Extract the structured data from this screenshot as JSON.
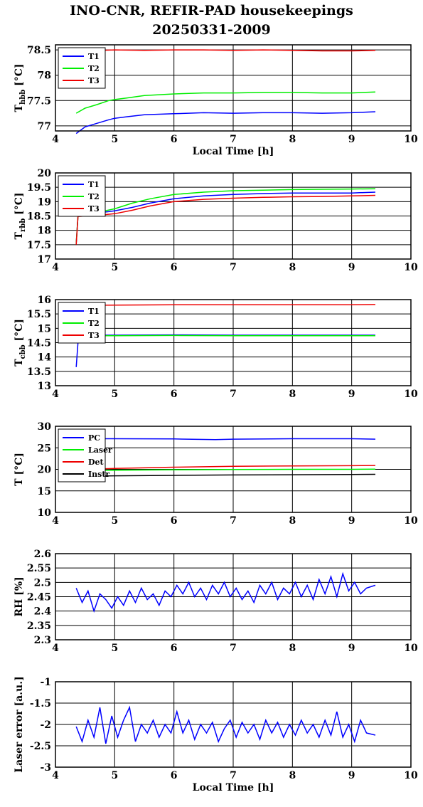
{
  "title_line1": "INO-CNR, REFIR-PAD housekeepings",
  "title_line2": "20250331-2009",
  "colors": {
    "blue": "#0000ff",
    "green": "#00ee00",
    "red": "#ee0000",
    "black": "#000000"
  },
  "chart_data": [
    {
      "type": "line",
      "ylabel": "T",
      "ylabel_sub": "hbb",
      "ylabel_unit": " [°C]",
      "xlabel": "Local Time [h]",
      "xlim": [
        4,
        10
      ],
      "ylim": [
        76.9,
        78.6
      ],
      "xticks": [
        "4",
        "5",
        "6",
        "7",
        "8",
        "9",
        "10"
      ],
      "yticks": [
        "78.5",
        "78",
        "77.5",
        "77"
      ],
      "ytick_values": [
        78.5,
        78,
        77.5,
        77
      ],
      "legend": "top-left",
      "series": [
        {
          "name": "T1",
          "color": "blue",
          "x": [
            4.35,
            4.5,
            4.7,
            4.9,
            5.0,
            5.2,
            5.5,
            6.0,
            6.5,
            7.0,
            7.5,
            8.0,
            8.5,
            9.0,
            9.4
          ],
          "y": [
            76.85,
            76.98,
            77.05,
            77.12,
            77.15,
            77.18,
            77.22,
            77.24,
            77.26,
            77.25,
            77.26,
            77.26,
            77.25,
            77.26,
            77.28
          ]
        },
        {
          "name": "T2",
          "color": "green",
          "x": [
            4.35,
            4.5,
            4.7,
            4.9,
            5.0,
            5.2,
            5.5,
            6.0,
            6.5,
            7.0,
            7.5,
            8.0,
            8.5,
            9.0,
            9.4
          ],
          "y": [
            77.25,
            77.35,
            77.42,
            77.5,
            77.52,
            77.55,
            77.6,
            77.63,
            77.65,
            77.65,
            77.66,
            77.66,
            77.65,
            77.65,
            77.67
          ]
        },
        {
          "name": "T3",
          "color": "red",
          "x": [
            4.35,
            4.5,
            5.0,
            5.5,
            6.0,
            6.5,
            7.0,
            7.5,
            8.0,
            8.5,
            9.0,
            9.4
          ],
          "y": [
            78.5,
            78.48,
            78.5,
            78.49,
            78.5,
            78.5,
            78.49,
            78.5,
            78.49,
            78.48,
            78.48,
            78.49
          ]
        }
      ]
    },
    {
      "type": "line",
      "ylabel": "T",
      "ylabel_sub": "rbb",
      "ylabel_unit": " [°C]",
      "xlabel": "",
      "xlim": [
        4,
        10
      ],
      "ylim": [
        17,
        20
      ],
      "xticks": [
        "4",
        "5",
        "6",
        "7",
        "8",
        "9",
        "10"
      ],
      "yticks": [
        "20",
        "19.5",
        "19",
        "18.5",
        "18",
        "17.5",
        "17"
      ],
      "ytick_values": [
        20,
        19.5,
        19,
        18.5,
        18,
        17.5,
        17
      ],
      "legend": "top-left",
      "series": [
        {
          "name": "T1",
          "color": "blue",
          "x": [
            4.35,
            4.38,
            4.5,
            4.7,
            5.0,
            5.3,
            5.6,
            6.0,
            6.5,
            7.0,
            7.5,
            8.0,
            8.5,
            9.0,
            9.4
          ],
          "y": [
            17.55,
            18.5,
            18.55,
            18.6,
            18.68,
            18.8,
            18.95,
            19.1,
            19.2,
            19.25,
            19.28,
            19.3,
            19.3,
            19.3,
            19.33
          ]
        },
        {
          "name": "T2",
          "color": "green",
          "x": [
            4.35,
            4.38,
            4.5,
            4.7,
            5.0,
            5.3,
            5.6,
            6.0,
            6.5,
            7.0,
            7.5,
            8.0,
            8.5,
            9.0,
            9.4
          ],
          "y": [
            17.55,
            18.5,
            18.55,
            18.62,
            18.75,
            18.95,
            19.1,
            19.25,
            19.33,
            19.38,
            19.4,
            19.42,
            19.43,
            19.44,
            19.45
          ]
        },
        {
          "name": "T3",
          "color": "red",
          "x": [
            4.35,
            4.38,
            4.5,
            4.7,
            5.0,
            5.3,
            5.6,
            6.0,
            6.5,
            7.0,
            7.5,
            8.0,
            8.5,
            9.0,
            9.4
          ],
          "y": [
            17.5,
            18.48,
            18.5,
            18.52,
            18.58,
            18.7,
            18.85,
            19.0,
            19.08,
            19.12,
            19.15,
            19.17,
            19.18,
            19.2,
            19.22
          ]
        }
      ]
    },
    {
      "type": "line",
      "ylabel": "T",
      "ylabel_sub": "cbb",
      "ylabel_unit": " [°C]",
      "xlabel": "",
      "xlim": [
        4,
        10
      ],
      "ylim": [
        13,
        16
      ],
      "xticks": [
        "4",
        "5",
        "6",
        "7",
        "8",
        "9",
        "10"
      ],
      "yticks": [
        "16",
        "15.5",
        "15",
        "14.5",
        "14",
        "13.5",
        "13"
      ],
      "ytick_values": [
        16,
        15.5,
        15,
        14.5,
        14,
        13.5,
        13
      ],
      "legend": "top-left",
      "series": [
        {
          "name": "T1",
          "color": "blue",
          "x": [
            4.35,
            4.38,
            4.4,
            4.5,
            5.0,
            6.0,
            7.0,
            8.0,
            9.0,
            9.4
          ],
          "y": [
            13.65,
            14.5,
            14.75,
            14.76,
            14.76,
            14.77,
            14.76,
            14.76,
            14.76,
            14.76
          ]
        },
        {
          "name": "T2",
          "color": "green",
          "x": [
            4.5,
            5.0,
            6.0,
            7.0,
            8.0,
            9.0,
            9.4
          ],
          "y": [
            14.74,
            14.74,
            14.75,
            14.74,
            14.74,
            14.74,
            14.74
          ]
        },
        {
          "name": "T3",
          "color": "red",
          "x": [
            4.5,
            5.0,
            6.0,
            7.0,
            8.0,
            9.0,
            9.4
          ],
          "y": [
            15.8,
            15.81,
            15.82,
            15.82,
            15.82,
            15.82,
            15.83
          ]
        }
      ]
    },
    {
      "type": "line",
      "ylabel": "T [°C]",
      "ylabel_sub": "",
      "ylabel_unit": "",
      "xlabel": "",
      "xlim": [
        4,
        10
      ],
      "ylim": [
        10,
        30
      ],
      "xticks": [
        "4",
        "5",
        "6",
        "7",
        "8",
        "9",
        "10"
      ],
      "yticks": [
        "30",
        "25",
        "20",
        "15",
        "10"
      ],
      "ytick_values": [
        30,
        25,
        20,
        15,
        10
      ],
      "legend": "top-left",
      "series": [
        {
          "name": "PC",
          "color": "blue",
          "x": [
            4.5,
            5.0,
            6.0,
            6.7,
            7.0,
            8.0,
            9.0,
            9.4
          ],
          "y": [
            27.1,
            27.1,
            27.05,
            26.9,
            27.0,
            27.1,
            27.1,
            27.0
          ]
        },
        {
          "name": "Laser",
          "color": "green",
          "x": [
            4.5,
            5.0,
            6.0,
            7.0,
            8.0,
            9.0,
            9.4
          ],
          "y": [
            19.7,
            19.8,
            19.9,
            19.95,
            20.0,
            20.0,
            20.05
          ]
        },
        {
          "name": "Det",
          "color": "red",
          "x": [
            4.5,
            5.0,
            6.0,
            7.0,
            8.0,
            9.0,
            9.4
          ],
          "y": [
            20.0,
            20.2,
            20.5,
            20.7,
            20.8,
            20.85,
            20.9
          ]
        },
        {
          "name": "Instr",
          "color": "black",
          "x": [
            4.5,
            5.0,
            6.0,
            7.0,
            8.0,
            9.0,
            9.4
          ],
          "y": [
            18.4,
            18.5,
            18.6,
            18.7,
            18.75,
            18.8,
            18.85
          ]
        }
      ]
    },
    {
      "type": "line",
      "ylabel": "RH [%]",
      "ylabel_sub": "",
      "ylabel_unit": "",
      "xlabel": "",
      "xlim": [
        4,
        10
      ],
      "ylim": [
        2.3,
        2.6
      ],
      "xticks": [
        "4",
        "5",
        "6",
        "7",
        "8",
        "9",
        "10"
      ],
      "yticks": [
        "2.6",
        "2.55",
        "2.5",
        "2.45",
        "2.4",
        "2.35",
        "2.3"
      ],
      "ytick_values": [
        2.6,
        2.55,
        2.5,
        2.45,
        2.4,
        2.35,
        2.3
      ],
      "legend": "none",
      "series": [
        {
          "name": "",
          "color": "blue",
          "x": [
            4.35,
            4.45,
            4.55,
            4.65,
            4.75,
            4.85,
            4.95,
            5.05,
            5.15,
            5.25,
            5.35,
            5.45,
            5.55,
            5.65,
            5.75,
            5.85,
            5.95,
            6.05,
            6.15,
            6.25,
            6.35,
            6.45,
            6.55,
            6.65,
            6.75,
            6.85,
            6.95,
            7.05,
            7.15,
            7.25,
            7.35,
            7.45,
            7.55,
            7.65,
            7.75,
            7.85,
            7.95,
            8.05,
            8.15,
            8.25,
            8.35,
            8.45,
            8.55,
            8.65,
            8.75,
            8.85,
            8.95,
            9.05,
            9.15,
            9.25,
            9.4
          ],
          "y": [
            2.48,
            2.43,
            2.47,
            2.4,
            2.46,
            2.44,
            2.41,
            2.45,
            2.42,
            2.47,
            2.43,
            2.48,
            2.44,
            2.46,
            2.42,
            2.47,
            2.45,
            2.49,
            2.46,
            2.5,
            2.45,
            2.48,
            2.44,
            2.49,
            2.46,
            2.5,
            2.45,
            2.48,
            2.44,
            2.47,
            2.43,
            2.49,
            2.46,
            2.5,
            2.44,
            2.48,
            2.46,
            2.5,
            2.45,
            2.49,
            2.44,
            2.51,
            2.46,
            2.52,
            2.45,
            2.53,
            2.47,
            2.5,
            2.46,
            2.48,
            2.49
          ]
        }
      ]
    },
    {
      "type": "line",
      "ylabel": "Laser error [a.u.]",
      "ylabel_sub": "",
      "ylabel_unit": "",
      "xlabel": "Local Time [h]",
      "xlim": [
        4,
        10
      ],
      "ylim": [
        -3,
        -1
      ],
      "xticks": [
        "4",
        "5",
        "6",
        "7",
        "8",
        "9",
        "10"
      ],
      "yticks": [
        "-1",
        "-1.5",
        "-2",
        "-2.5",
        "-3"
      ],
      "ytick_values": [
        -1,
        -1.5,
        -2,
        -2.5,
        -3
      ],
      "legend": "none",
      "series": [
        {
          "name": "",
          "color": "blue",
          "x": [
            4.35,
            4.45,
            4.55,
            4.65,
            4.75,
            4.85,
            4.95,
            5.05,
            5.15,
            5.25,
            5.35,
            5.45,
            5.55,
            5.65,
            5.75,
            5.85,
            5.95,
            6.05,
            6.15,
            6.25,
            6.35,
            6.45,
            6.55,
            6.65,
            6.75,
            6.85,
            6.95,
            7.05,
            7.15,
            7.25,
            7.35,
            7.45,
            7.55,
            7.65,
            7.75,
            7.85,
            7.95,
            8.05,
            8.15,
            8.25,
            8.35,
            8.45,
            8.55,
            8.65,
            8.75,
            8.85,
            8.95,
            9.05,
            9.15,
            9.25,
            9.4
          ],
          "y": [
            -2.05,
            -2.4,
            -1.9,
            -2.3,
            -1.6,
            -2.45,
            -1.8,
            -2.3,
            -1.9,
            -1.6,
            -2.4,
            -2.0,
            -2.2,
            -1.9,
            -2.3,
            -2.0,
            -2.2,
            -1.7,
            -2.2,
            -1.9,
            -2.35,
            -2.0,
            -2.2,
            -1.95,
            -2.4,
            -2.1,
            -1.9,
            -2.3,
            -1.95,
            -2.2,
            -2.0,
            -2.35,
            -1.9,
            -2.2,
            -1.95,
            -2.3,
            -2.0,
            -2.25,
            -1.9,
            -2.2,
            -2.0,
            -2.3,
            -1.9,
            -2.25,
            -1.7,
            -2.3,
            -2.0,
            -2.4,
            -1.9,
            -2.2,
            -2.25
          ]
        }
      ]
    }
  ]
}
